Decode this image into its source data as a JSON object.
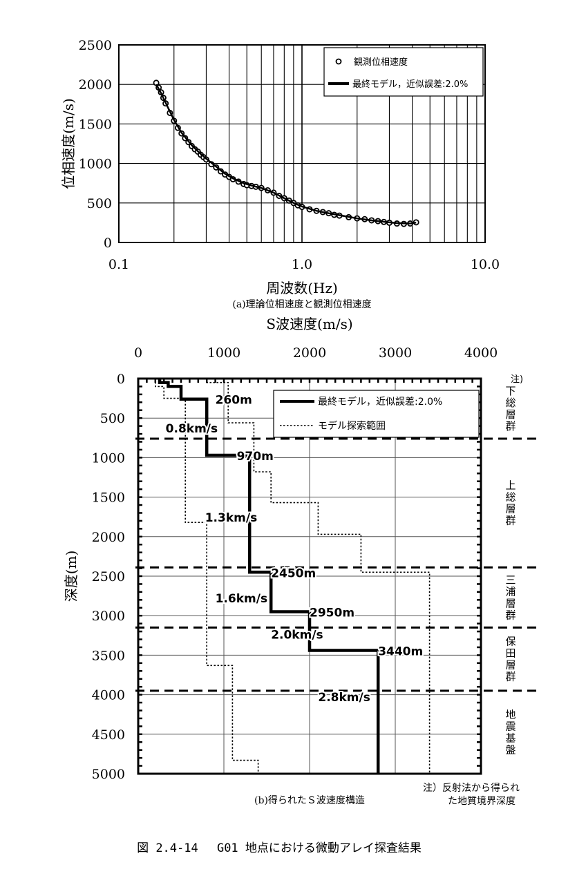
{
  "chart_data": [
    {
      "type": "scatter",
      "xlabel": "周波数(Hz)",
      "ylabel": "位相速度(m/s)",
      "caption": "(a)理論位相速度と観測位相速度",
      "x_scale": "log",
      "xlim": [
        0.1,
        10.0
      ],
      "ylim": [
        0,
        2500
      ],
      "x_ticks": [
        "0.1",
        "1.0",
        "10.0"
      ],
      "y_ticks": [
        "0",
        "500",
        "1000",
        "1500",
        "2000",
        "2500"
      ],
      "grid": true,
      "legend_position": "top-right",
      "series": [
        {
          "name": "観測位相速度",
          "kind": "points",
          "x": [
            0.16,
            0.165,
            0.17,
            0.175,
            0.18,
            0.19,
            0.2,
            0.21,
            0.22,
            0.23,
            0.24,
            0.25,
            0.26,
            0.27,
            0.28,
            0.29,
            0.3,
            0.32,
            0.34,
            0.36,
            0.38,
            0.4,
            0.42,
            0.45,
            0.48,
            0.5,
            0.53,
            0.56,
            0.6,
            0.65,
            0.7,
            0.75,
            0.8,
            0.85,
            0.9,
            0.95,
            1.0,
            1.1,
            1.2,
            1.3,
            1.4,
            1.5,
            1.6,
            1.8,
            2.0,
            2.2,
            2.4,
            2.6,
            2.8,
            3.0,
            3.3,
            3.6,
            3.9,
            4.2
          ],
          "y": [
            2020,
            1960,
            1900,
            1830,
            1760,
            1640,
            1540,
            1450,
            1380,
            1320,
            1270,
            1220,
            1180,
            1150,
            1110,
            1080,
            1050,
            990,
            950,
            900,
            860,
            830,
            800,
            770,
            740,
            725,
            715,
            705,
            690,
            660,
            630,
            590,
            560,
            530,
            500,
            470,
            450,
            420,
            400,
            385,
            370,
            350,
            340,
            320,
            305,
            295,
            280,
            270,
            260,
            250,
            240,
            235,
            240,
            255
          ]
        },
        {
          "name": "最終モデル，近似誤差:2.0%",
          "kind": "line",
          "x": [
            0.16,
            0.17,
            0.18,
            0.2,
            0.22,
            0.25,
            0.28,
            0.3,
            0.34,
            0.38,
            0.42,
            0.48,
            0.53,
            0.6,
            0.7,
            0.8,
            0.9,
            1.0,
            1.2,
            1.4,
            1.6,
            2.0,
            2.4,
            2.8,
            3.3,
            3.9,
            4.2
          ],
          "y": [
            2000,
            1890,
            1770,
            1550,
            1390,
            1230,
            1120,
            1060,
            960,
            870,
            810,
            750,
            720,
            690,
            630,
            560,
            500,
            455,
            400,
            370,
            345,
            305,
            280,
            262,
            245,
            240,
            252
          ]
        }
      ]
    },
    {
      "type": "line",
      "title": "S波速度(m/s)",
      "ylabel": "深度(m)",
      "caption": "(b)得られたＳ波速度構造",
      "xlim": [
        0,
        4000
      ],
      "ylim": [
        5000,
        0
      ],
      "x_ticks": [
        "0",
        "1000",
        "2000",
        "3000",
        "4000"
      ],
      "y_ticks": [
        "0",
        "500",
        "1000",
        "1500",
        "2000",
        "2500",
        "3000",
        "3500",
        "4000",
        "4500",
        "5000"
      ],
      "grid": true,
      "legend_position": "top-right",
      "series": [
        {
          "name": "最終モデル，近似誤差:2.0%",
          "style": "solid",
          "x": [
            250,
            250,
            350,
            350,
            500,
            500,
            800,
            800,
            1300,
            1300,
            1550,
            1550,
            2000,
            2000,
            2800,
            2800
          ],
          "y": [
            0,
            50,
            50,
            100,
            100,
            260,
            260,
            970,
            970,
            2450,
            2450,
            2950,
            2950,
            3440,
            3440,
            5000
          ]
        },
        {
          "name": "モデル探索範囲",
          "kind": "upper-bound",
          "style": "dotted",
          "x": [
            800,
            800,
            1050,
            1050,
            1350,
            1350,
            1550,
            1550,
            2100,
            2100,
            2600,
            2600,
            3400,
            3400
          ],
          "y": [
            0,
            50,
            50,
            560,
            560,
            1180,
            1180,
            1570,
            1570,
            1970,
            1970,
            2450,
            2450,
            5000
          ]
        },
        {
          "name": "モデル探索範囲",
          "kind": "lower-bound",
          "style": "dotted",
          "x": [
            200,
            200,
            300,
            300,
            550,
            550,
            800,
            800,
            1100,
            1100,
            1400,
            1400
          ],
          "y": [
            0,
            100,
            100,
            250,
            250,
            1820,
            1820,
            3630,
            3630,
            4830,
            4830,
            5000
          ]
        }
      ],
      "annotations": {
        "depth_labels": [
          {
            "text": "260m",
            "x": 900,
            "y": 260
          },
          {
            "text": "970m",
            "x": 1150,
            "y": 970
          },
          {
            "text": "2450m",
            "x": 1550,
            "y": 2450
          },
          {
            "text": "2950m",
            "x": 2000,
            "y": 2950
          },
          {
            "text": "3440m",
            "x": 2800,
            "y": 3440
          }
        ],
        "velocity_labels": [
          {
            "text": "0.8km/s",
            "x": 320,
            "y": 620
          },
          {
            "text": "1.3km/s",
            "x": 780,
            "y": 1750
          },
          {
            "text": "1.6km/s",
            "x": 900,
            "y": 2770
          },
          {
            "text": "2.0km/s",
            "x": 1550,
            "y": 3230
          },
          {
            "text": "2.8km/s",
            "x": 2100,
            "y": 4020
          }
        ]
      },
      "boundaries": {
        "depths": [
          760,
          2390,
          3150,
          3950
        ],
        "note_mark": "注)",
        "formations": [
          "下総層群",
          "上総層群",
          "三浦層群",
          "保田層群",
          "地震基盤"
        ],
        "footnote": "注）反射法から得られた地質境界深度"
      }
    }
  ],
  "figure_caption": "図 2.4-14　 G01 地点における微動アレイ探査結果"
}
